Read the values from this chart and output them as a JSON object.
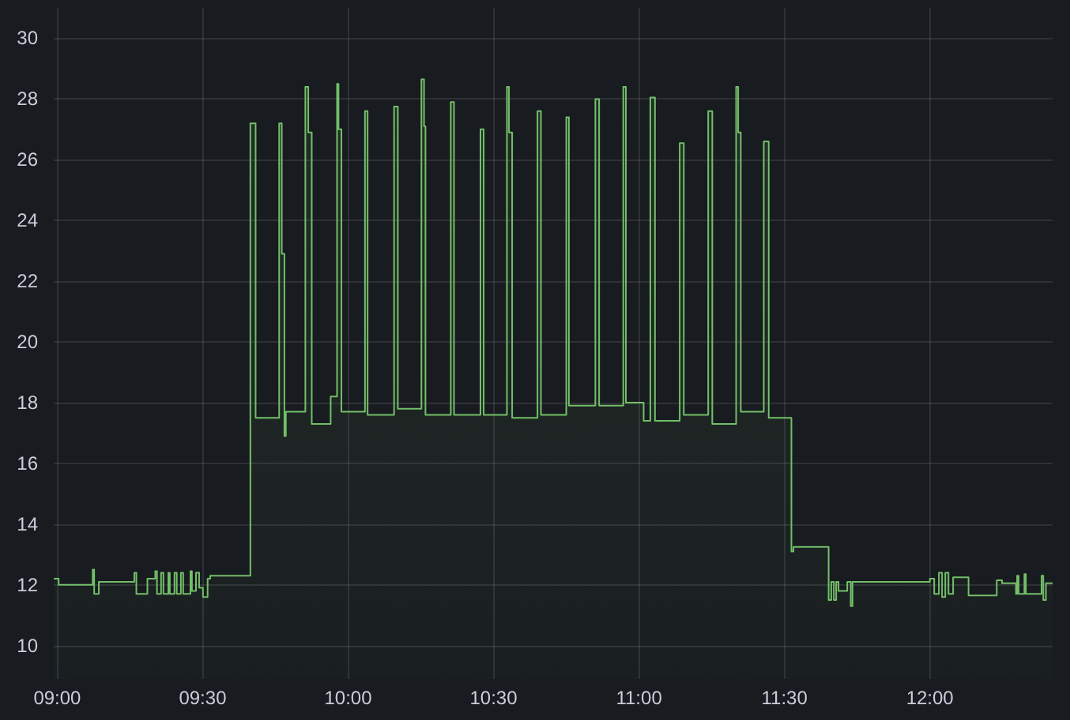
{
  "chart_data": {
    "type": "area",
    "x": [
      8.988,
      9.005,
      9.005,
      9.122,
      9.122,
      9.127,
      9.127,
      9.143,
      9.143,
      9.265,
      9.265,
      9.272,
      9.272,
      9.31,
      9.31,
      9.337,
      9.337,
      9.343,
      9.343,
      9.357,
      9.357,
      9.365,
      9.365,
      9.382,
      9.382,
      9.387,
      9.387,
      9.403,
      9.403,
      9.411,
      9.411,
      9.425,
      9.425,
      9.433,
      9.433,
      9.458,
      9.458,
      9.463,
      9.463,
      9.477,
      9.477,
      9.488,
      9.488,
      9.501,
      9.501,
      9.517,
      9.517,
      9.526,
      9.526,
      9.664,
      9.664,
      9.682,
      9.682,
      9.763,
      9.763,
      9.772,
      9.772,
      9.781,
      9.781,
      9.786,
      9.786,
      9.853,
      9.853,
      9.863,
      9.863,
      9.875,
      9.875,
      9.94,
      9.94,
      9.962,
      9.962,
      9.967,
      9.967,
      9.977,
      9.977,
      10.058,
      10.058,
      10.067,
      10.067,
      10.158,
      10.158,
      10.171,
      10.171,
      10.252,
      10.252,
      10.261,
      10.261,
      10.266,
      10.266,
      10.353,
      10.353,
      10.364,
      10.364,
      10.455,
      10.455,
      10.466,
      10.466,
      10.546,
      10.546,
      10.553,
      10.553,
      10.564,
      10.564,
      10.651,
      10.651,
      10.663,
      10.663,
      10.75,
      10.75,
      10.759,
      10.759,
      10.85,
      10.85,
      10.863,
      10.863,
      10.946,
      10.946,
      10.955,
      10.955,
      11.016,
      11.016,
      11.039,
      11.039,
      11.055,
      11.055,
      11.14,
      11.14,
      11.154,
      11.154,
      11.238,
      11.238,
      11.252,
      11.252,
      11.334,
      11.334,
      11.341,
      11.341,
      11.35,
      11.35,
      11.429,
      11.429,
      11.446,
      11.446,
      11.524,
      11.524,
      11.531,
      11.531,
      11.652,
      11.652,
      11.661,
      11.661,
      11.67,
      11.67,
      11.678,
      11.678,
      11.686,
      11.686,
      11.716,
      11.716,
      11.728,
      11.728,
      11.734,
      11.734,
      12.0,
      12.0,
      12.015,
      12.015,
      12.031,
      12.031,
      12.042,
      12.042,
      12.053,
      12.053,
      12.064,
      12.064,
      12.08,
      12.08,
      12.133,
      12.133,
      12.23,
      12.23,
      12.248,
      12.248,
      12.296,
      12.296,
      12.3,
      12.3,
      12.305,
      12.305,
      12.325,
      12.325,
      12.33,
      12.33,
      12.384,
      12.384,
      12.39,
      12.39,
      12.399,
      12.399,
      12.422
    ],
    "values": [
      12.2,
      12.2,
      12.0,
      12.0,
      12.5,
      12.5,
      11.7,
      11.7,
      12.1,
      12.1,
      12.4,
      12.4,
      11.7,
      11.7,
      12.2,
      12.2,
      12.45,
      12.45,
      11.7,
      11.7,
      12.4,
      12.4,
      11.7,
      11.7,
      12.4,
      12.4,
      11.7,
      11.7,
      12.4,
      12.4,
      11.7,
      11.7,
      12.4,
      12.4,
      11.7,
      11.7,
      12.45,
      12.45,
      11.8,
      11.8,
      12.4,
      12.4,
      11.9,
      11.9,
      11.6,
      11.6,
      12.2,
      12.2,
      12.3,
      12.3,
      27.2,
      27.2,
      17.5,
      17.5,
      27.2,
      27.2,
      22.9,
      22.9,
      16.9,
      16.9,
      17.7,
      17.7,
      28.4,
      28.4,
      26.9,
      26.9,
      17.3,
      17.3,
      18.2,
      18.2,
      28.5,
      28.5,
      27.0,
      27.0,
      17.7,
      17.7,
      27.6,
      27.6,
      17.6,
      17.6,
      27.75,
      27.75,
      17.8,
      17.8,
      28.65,
      28.65,
      27.1,
      27.1,
      17.6,
      17.6,
      27.9,
      27.9,
      17.6,
      17.6,
      27.0,
      27.0,
      17.6,
      17.6,
      28.4,
      28.4,
      26.9,
      26.9,
      17.5,
      17.5,
      27.6,
      27.6,
      17.6,
      17.6,
      27.4,
      27.4,
      17.9,
      17.9,
      28.0,
      28.0,
      17.9,
      17.9,
      28.4,
      28.4,
      18.0,
      18.0,
      17.4,
      17.4,
      28.05,
      28.05,
      17.4,
      17.4,
      26.55,
      26.55,
      17.6,
      17.6,
      27.6,
      27.6,
      17.3,
      17.3,
      28.4,
      28.4,
      26.9,
      26.9,
      17.7,
      17.7,
      26.6,
      26.6,
      17.5,
      17.5,
      13.1,
      13.1,
      13.25,
      13.25,
      11.5,
      11.5,
      12.1,
      12.1,
      11.5,
      11.5,
      12.1,
      12.1,
      11.8,
      11.8,
      12.1,
      12.1,
      11.3,
      11.3,
      12.1,
      12.1,
      12.2,
      12.2,
      11.7,
      11.7,
      12.4,
      12.4,
      11.6,
      11.6,
      12.4,
      12.4,
      11.7,
      11.7,
      12.25,
      12.25,
      11.65,
      11.65,
      12.15,
      12.15,
      12.05,
      12.05,
      11.7,
      11.7,
      12.3,
      12.3,
      11.7,
      11.7,
      12.35,
      12.35,
      11.7,
      11.7,
      12.3,
      12.3,
      11.5,
      11.5,
      12.05,
      12.05
    ],
    "color": "#73bf69",
    "marker": "none",
    "xlim": [
      8.988,
      12.422
    ],
    "ylim": [
      8.9,
      31
    ],
    "xticks": [
      {
        "value": 9,
        "label": "09:00"
      },
      {
        "value": 9.5,
        "label": "09:30"
      },
      {
        "value": 10,
        "label": "10:00"
      },
      {
        "value": 10.5,
        "label": "10:30"
      },
      {
        "value": 11,
        "label": "11:00"
      },
      {
        "value": 11.5,
        "label": "11:30"
      },
      {
        "value": 12,
        "label": "12:00"
      }
    ],
    "yticks": [
      10,
      12,
      14,
      16,
      18,
      20,
      22,
      24,
      26,
      28,
      30
    ],
    "grid": true
  }
}
